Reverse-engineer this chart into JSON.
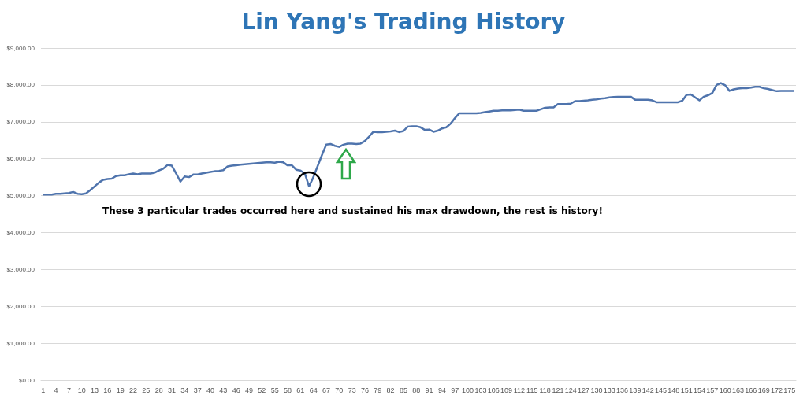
{
  "chart_data": {
    "type": "line",
    "title": "Lin Yang's Trading History",
    "categories": [
      "1",
      null,
      null,
      "4",
      null,
      null,
      "7",
      null,
      null,
      "10",
      null,
      null,
      "13",
      null,
      null,
      "16",
      null,
      null,
      "19",
      null,
      null,
      "22",
      null,
      null,
      "25",
      null,
      null,
      "28",
      null,
      null,
      "31",
      null,
      null,
      "34",
      null,
      null,
      "37",
      null,
      null,
      "40",
      null,
      null,
      "43",
      null,
      null,
      "46",
      null,
      null,
      "49",
      null,
      null,
      "52",
      null,
      null,
      "55",
      null,
      null,
      "58",
      null,
      null,
      "61",
      null,
      null,
      "64",
      null,
      null,
      "67",
      null,
      null,
      "70",
      null,
      null,
      "73",
      null,
      null,
      "76",
      null,
      null,
      "79",
      null,
      null,
      "82",
      null,
      null,
      "85",
      null,
      null,
      "88",
      null,
      null,
      "91",
      null,
      null,
      "94",
      null,
      null,
      "97",
      null,
      null,
      "100",
      null,
      null,
      "103",
      null,
      null,
      "106",
      null,
      null,
      "109",
      null,
      null,
      "112",
      null,
      null,
      "115",
      null,
      null,
      "118",
      null,
      null,
      "121",
      null,
      null,
      "124",
      null,
      null,
      "127",
      null,
      null,
      "130",
      null,
      null,
      "133",
      null,
      null,
      "136",
      null,
      null,
      "139",
      null,
      null,
      "142",
      null,
      null,
      "145",
      null,
      null,
      "148",
      null,
      null,
      "151",
      null,
      null,
      "154",
      null,
      null,
      "157",
      null,
      null,
      "160",
      null,
      null,
      "163",
      null,
      null,
      "166",
      null,
      null,
      "169",
      null,
      null,
      "172",
      null,
      null,
      "175",
      null
    ],
    "series": [
      {
        "color": "#4f74ad",
        "values": [
          5030,
          5030,
          5030,
          5050,
          5050,
          5060,
          5070,
          5100,
          5050,
          5040,
          5060,
          5150,
          5250,
          5350,
          5430,
          5450,
          5460,
          5530,
          5550,
          5550,
          5580,
          5600,
          5580,
          5600,
          5600,
          5600,
          5620,
          5680,
          5730,
          5830,
          5810,
          5600,
          5380,
          5520,
          5500,
          5570,
          5570,
          5600,
          5620,
          5640,
          5660,
          5670,
          5690,
          5790,
          5810,
          5820,
          5840,
          5850,
          5860,
          5870,
          5880,
          5890,
          5900,
          5900,
          5890,
          5920,
          5900,
          5820,
          5820,
          5700,
          5680,
          5600,
          5250,
          5500,
          5800,
          6100,
          6380,
          6400,
          6350,
          6320,
          6380,
          6410,
          6410,
          6400,
          6410,
          6480,
          6600,
          6730,
          6720,
          6720,
          6730,
          6740,
          6760,
          6720,
          6750,
          6870,
          6880,
          6880,
          6850,
          6780,
          6790,
          6730,
          6760,
          6820,
          6850,
          6950,
          7100,
          7230,
          7230,
          7230,
          7230,
          7230,
          7240,
          7260,
          7280,
          7300,
          7300,
          7310,
          7310,
          7310,
          7320,
          7330,
          7300,
          7300,
          7300,
          7300,
          7340,
          7380,
          7390,
          7390,
          7480,
          7480,
          7480,
          7490,
          7560,
          7560,
          7570,
          7580,
          7600,
          7610,
          7630,
          7640,
          7660,
          7670,
          7680,
          7680,
          7680,
          7680,
          7600,
          7600,
          7600,
          7600,
          7580,
          7530,
          7530,
          7530,
          7530,
          7530,
          7530,
          7570,
          7730,
          7740,
          7660,
          7580,
          7680,
          7720,
          7780,
          8000,
          8050,
          7990,
          7840,
          7880,
          7900,
          7910,
          7910,
          7930,
          7950,
          7950,
          7910,
          7890,
          7860,
          7830,
          7840,
          7840,
          7840,
          7840
        ]
      }
    ],
    "ylim": [
      0,
      9000
    ],
    "yticks": [
      {
        "value": 0,
        "label": "$0.00"
      },
      {
        "value": 1000,
        "label": "$1,000.00"
      },
      {
        "value": 2000,
        "label": "$2,000.00"
      },
      {
        "value": 3000,
        "label": "$3,000.00"
      },
      {
        "value": 4000,
        "label": "$4,000.00"
      },
      {
        "value": 5000,
        "label": "$5,000.00"
      },
      {
        "value": 6000,
        "label": "$6,000.00"
      },
      {
        "value": 7000,
        "label": "$7,000.00"
      },
      {
        "value": 8000,
        "label": "$8,000.00"
      },
      {
        "value": 9000,
        "label": "$9,000.00"
      }
    ],
    "grid": "y",
    "marker": "none",
    "annotations": [
      "These 3 particular trades occurred here and sustained his max drawdown, the rest is history!"
    ]
  }
}
